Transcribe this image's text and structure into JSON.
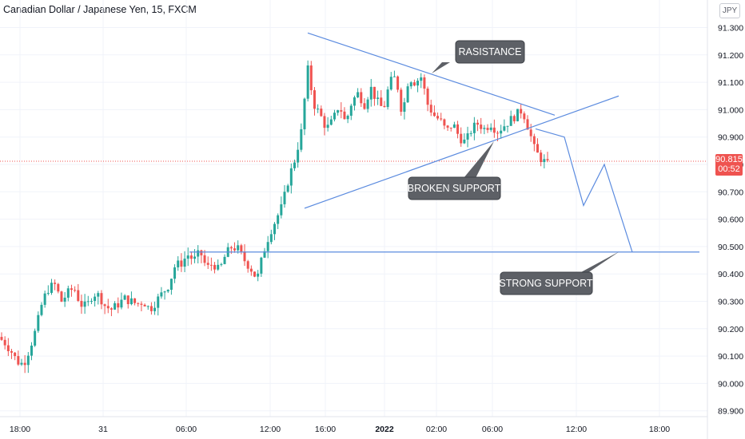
{
  "header": {
    "title": "Canadian Dollar / Japanese Yen, 15, FXCM"
  },
  "currency_button": "JPY",
  "last_price": {
    "price": "90.815",
    "countdown": "00:52",
    "color": "#ef5350"
  },
  "colors": {
    "up": "#26a69a",
    "down": "#ef5350",
    "drawing": "#5b8bdf",
    "callout": "#5d6066"
  },
  "chart_data": {
    "type": "candlestick",
    "title": "Canadian Dollar / Japanese Yen, 15, FXCM",
    "y_axis": {
      "range": [
        89.88,
        91.35
      ],
      "ticks": [
        "91.300",
        "91.200",
        "91.100",
        "91.000",
        "90.900",
        "90.800",
        "90.700",
        "90.600",
        "90.500",
        "90.400",
        "90.300",
        "90.200",
        "90.100",
        "90.000",
        "89.900"
      ],
      "tick_values": [
        91.3,
        91.2,
        91.1,
        91.0,
        90.9,
        90.8,
        90.7,
        90.6,
        90.5,
        90.4,
        90.3,
        90.2,
        90.1,
        90.0,
        89.9
      ]
    },
    "x_axis": {
      "ticks": [
        {
          "label": "18:00",
          "bold": false
        },
        {
          "label": "31",
          "bold": false
        },
        {
          "label": "06:00",
          "bold": false
        },
        {
          "label": "12:00",
          "bold": false
        },
        {
          "label": "16:00",
          "bold": false
        },
        {
          "label": "2022",
          "bold": true
        },
        {
          "label": "02:00",
          "bold": false
        },
        {
          "label": "06:00",
          "bold": false
        },
        {
          "label": "12:00",
          "bold": false
        },
        {
          "label": "18:00",
          "bold": false
        }
      ]
    },
    "close_path": [
      90.17,
      90.15,
      90.12,
      90.08,
      90.07,
      90.13,
      90.2,
      90.3,
      90.35,
      90.36,
      90.3,
      90.33,
      90.35,
      90.29,
      90.28,
      90.33,
      90.32,
      90.28,
      90.27,
      90.29,
      90.31,
      90.3,
      90.29,
      90.3,
      90.27,
      90.3,
      90.33,
      90.36,
      90.43,
      90.44,
      90.47,
      90.45,
      90.48,
      90.42,
      90.44,
      90.41,
      90.47,
      90.5,
      90.49,
      90.45,
      90.42,
      90.38,
      90.48,
      90.55,
      90.6,
      90.65,
      90.75,
      90.82,
      90.92,
      91.15,
      91.02,
      90.98,
      90.93,
      90.96,
      91.02,
      90.95,
      91.03,
      91.06,
      91.02,
      91.08,
      91.03,
      91.0,
      91.1,
      91.12,
      90.98,
      91.12,
      91.1,
      91.12,
      91.02,
      90.98,
      90.96,
      90.92,
      90.95,
      90.9,
      90.88,
      90.93,
      90.95,
      90.93,
      90.95,
      90.92,
      90.94,
      90.96,
      90.98,
      91.0,
      90.93,
      90.85,
      90.82,
      90.8
    ],
    "last_price": 90.815,
    "drawings": [
      {
        "kind": "trendline",
        "name": "resistance",
        "from": {
          "x": "15:45",
          "y": 91.28
        },
        "to": {
          "x": "04:30",
          "y": 90.98
        }
      },
      {
        "kind": "trendline",
        "name": "rising support",
        "from": {
          "x": "15:20",
          "y": 90.64
        },
        "to": {
          "x": "08:45",
          "y": 91.05
        }
      },
      {
        "kind": "horizontal",
        "name": "strong support",
        "y": 90.48
      },
      {
        "kind": "projection",
        "points": [
          90.93,
          90.9,
          90.65,
          90.8,
          90.48
        ]
      }
    ],
    "annotations": [
      "RASISTANCE",
      "BROKEN SUPPORT",
      "STRONG SUPPORT"
    ]
  }
}
